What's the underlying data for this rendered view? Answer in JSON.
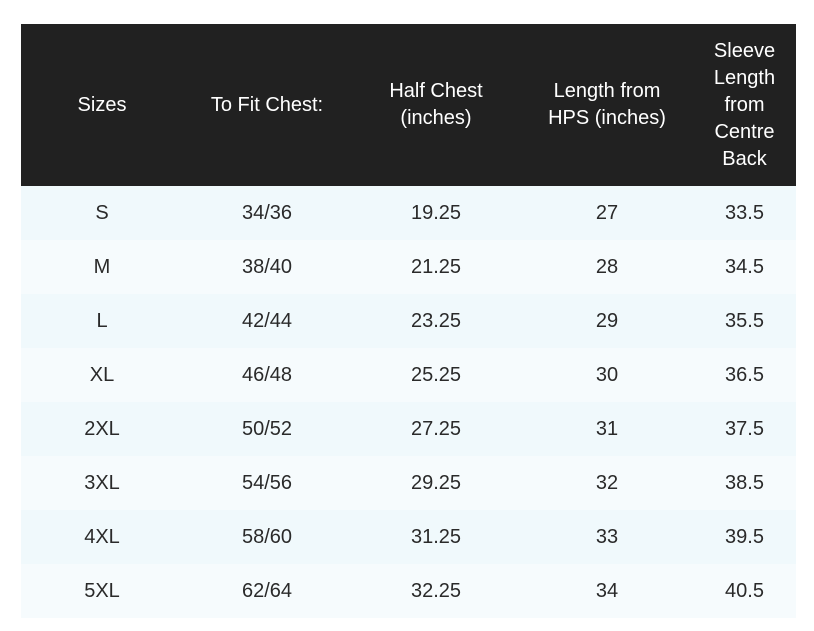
{
  "table": {
    "header": [
      [
        "Sizes"
      ],
      [
        "To Fit Chest:"
      ],
      [
        "Half Chest",
        "(inches)"
      ],
      [
        "Length from",
        "HPS (inches)"
      ],
      [
        "Sleeve",
        "Length",
        "from",
        "Centre",
        "Back"
      ]
    ],
    "rows": [
      [
        "S",
        "34/36",
        "19.25",
        "27",
        "33.5"
      ],
      [
        "M",
        "38/40",
        "21.25",
        "28",
        "34.5"
      ],
      [
        "L",
        "42/44",
        "23.25",
        "29",
        "35.5"
      ],
      [
        "XL",
        "46/48",
        "25.25",
        "30",
        "36.5"
      ],
      [
        "2XL",
        "50/52",
        "27.25",
        "31",
        "37.5"
      ],
      [
        "3XL",
        "54/56",
        "29.25",
        "32",
        "38.5"
      ],
      [
        "4XL",
        "58/60",
        "31.25",
        "33",
        "39.5"
      ],
      [
        "5XL",
        "62/64",
        "32.25",
        "34",
        "40.5"
      ]
    ]
  }
}
